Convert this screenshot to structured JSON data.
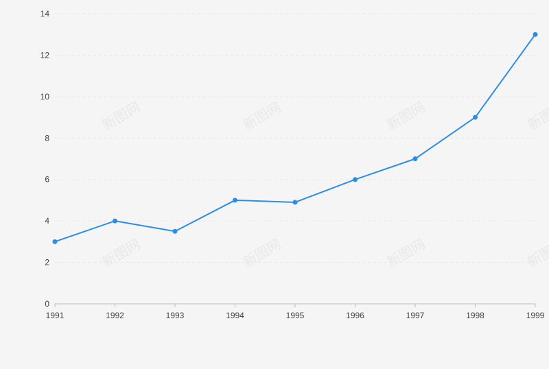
{
  "watermark_text": "新图网",
  "colors": {
    "background": "#f5f5f5",
    "line": "#2b8ee6",
    "grid": "#e6e6e6",
    "axis": "#bdbdbd",
    "tick_text": "#444444"
  },
  "chart_data": {
    "type": "line",
    "title": "",
    "xlabel": "",
    "ylabel": "",
    "x": [
      "1991",
      "1992",
      "1993",
      "1994",
      "1995",
      "1996",
      "1997",
      "1998",
      "1999"
    ],
    "series": [
      {
        "values": [
          3,
          4,
          3.5,
          5,
          4.9,
          6,
          7,
          9,
          13
        ]
      }
    ],
    "ylim": [
      0,
      14
    ],
    "yticks": [
      0,
      2,
      4,
      6,
      8,
      10,
      12,
      14
    ],
    "grid": "horizontal dashed",
    "legend": "none",
    "markers": "filled circles"
  }
}
